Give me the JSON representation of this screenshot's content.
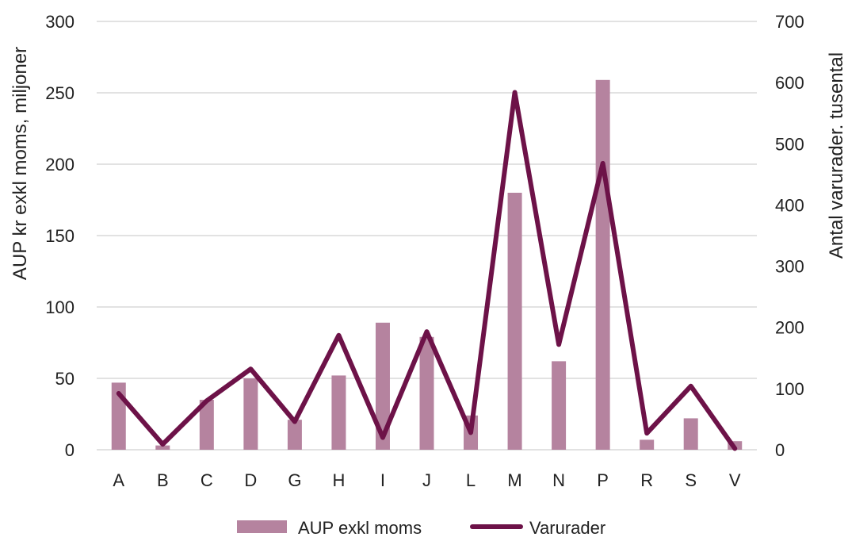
{
  "chart_data": {
    "type": "bar",
    "categories": [
      "A",
      "B",
      "C",
      "D",
      "G",
      "H",
      "I",
      "J",
      "L",
      "M",
      "N",
      "P",
      "R",
      "S",
      "V"
    ],
    "series": [
      {
        "name": "AUP exkl moms",
        "type": "bar",
        "axis": "left",
        "values": [
          47,
          3,
          35,
          50,
          21,
          52,
          89,
          79,
          24,
          180,
          62,
          259,
          7,
          22,
          6
        ]
      },
      {
        "name": "Varurader",
        "type": "line",
        "axis": "right",
        "values": [
          92,
          9,
          80,
          132,
          46,
          187,
          20,
          193,
          28,
          584,
          172,
          468,
          27,
          104,
          2
        ]
      }
    ],
    "ylabel": "AUP kr exkl moms, miljoner",
    "y2label": "Antal varurader. tusental",
    "ylim": [
      0,
      300
    ],
    "y2lim": [
      0,
      700
    ],
    "yticks": [
      "0",
      "50",
      "100",
      "150",
      "200",
      "250",
      "300"
    ],
    "y2ticks": [
      "0",
      "100",
      "200",
      "300",
      "400",
      "500",
      "600",
      "700"
    ],
    "grid": true,
    "legend": "bottom",
    "colors": {
      "bar": "#b5839f",
      "line": "#6d1248",
      "grid": "#d9d9d9"
    }
  }
}
